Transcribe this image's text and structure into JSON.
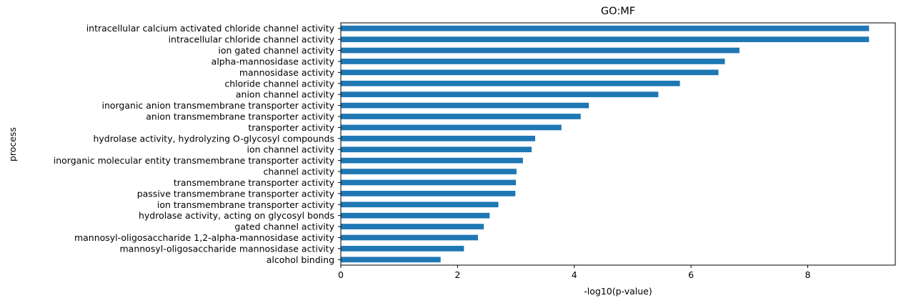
{
  "chart_data": {
    "type": "bar",
    "orientation": "horizontal",
    "title": "GO:MF",
    "xlabel": "-log10(p-value)",
    "ylabel": "process",
    "xlim": [
      0,
      9.5
    ],
    "xticks": [
      "0",
      "2",
      "4",
      "6",
      "8"
    ],
    "xtick_values": [
      0,
      2,
      4,
      6,
      8
    ],
    "bar_color": "#1f77b4",
    "grid": false,
    "categories": [
      "intracellular calcium activated chloride channel activity",
      "intracellular chloride channel activity",
      "ion gated channel activity",
      "alpha-mannosidase activity",
      "mannosidase activity",
      "chloride channel activity",
      "anion channel activity",
      "inorganic anion transmembrane transporter activity",
      "anion transmembrane transporter activity",
      "transporter activity",
      "hydrolase activity, hydrolyzing O-glycosyl compounds",
      "ion channel activity",
      "inorganic molecular entity transmembrane transporter activity",
      "channel activity",
      "transmembrane transporter activity",
      "passive transmembrane transporter activity",
      "ion transmembrane transporter activity",
      "hydrolase activity, acting on glycosyl bonds",
      "gated channel activity",
      "mannosyl-oligosaccharide 1,2-alpha-mannosidase activity",
      "mannosyl-oligosaccharide mannosidase activity",
      "alcohol binding"
    ],
    "values": [
      9.05,
      9.05,
      6.83,
      6.58,
      6.47,
      5.81,
      5.44,
      4.25,
      4.11,
      3.78,
      3.33,
      3.27,
      3.12,
      3.01,
      3.0,
      2.99,
      2.7,
      2.55,
      2.45,
      2.35,
      2.11,
      1.71
    ]
  }
}
